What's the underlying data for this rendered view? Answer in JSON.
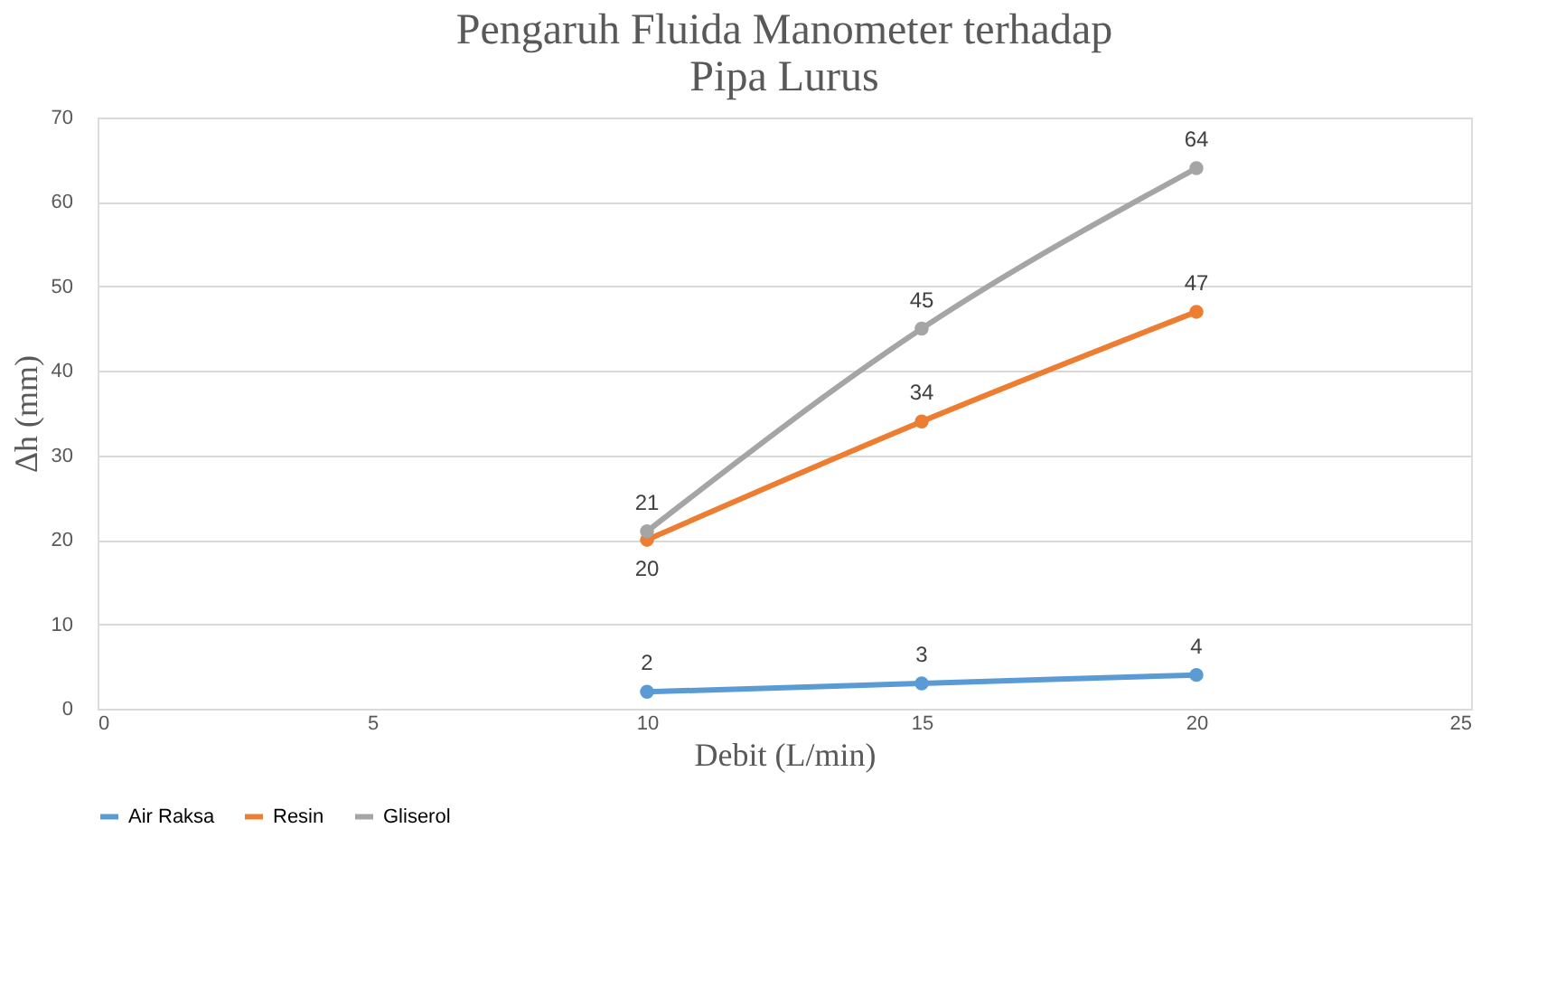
{
  "chart_data": {
    "type": "line",
    "title": [
      "Pengaruh Fluida Manometer terhadap",
      "Pipa Lurus"
    ],
    "xlabel": "Debit (L/min)",
    "ylabel": "Δh (mm)",
    "x": [
      10,
      15,
      20
    ],
    "series": [
      {
        "name": "Air Raksa",
        "color": "#5b9bd5",
        "values": [
          2,
          3,
          4
        ]
      },
      {
        "name": "Resin",
        "color": "#ed7d31",
        "values": [
          20,
          34,
          47
        ]
      },
      {
        "name": "Gliserol",
        "color": "#a5a5a5",
        "values": [
          21,
          45,
          64
        ]
      }
    ],
    "xlim": [
      0,
      25
    ],
    "xticks": [
      0,
      5,
      10,
      15,
      20,
      25
    ],
    "ylim": [
      0,
      70
    ],
    "yticks": [
      0,
      10,
      20,
      30,
      40,
      50,
      60,
      70
    ],
    "grid": "y",
    "legend": "bottom",
    "marker": "circle",
    "line_style": "solid",
    "data_labels": true
  }
}
